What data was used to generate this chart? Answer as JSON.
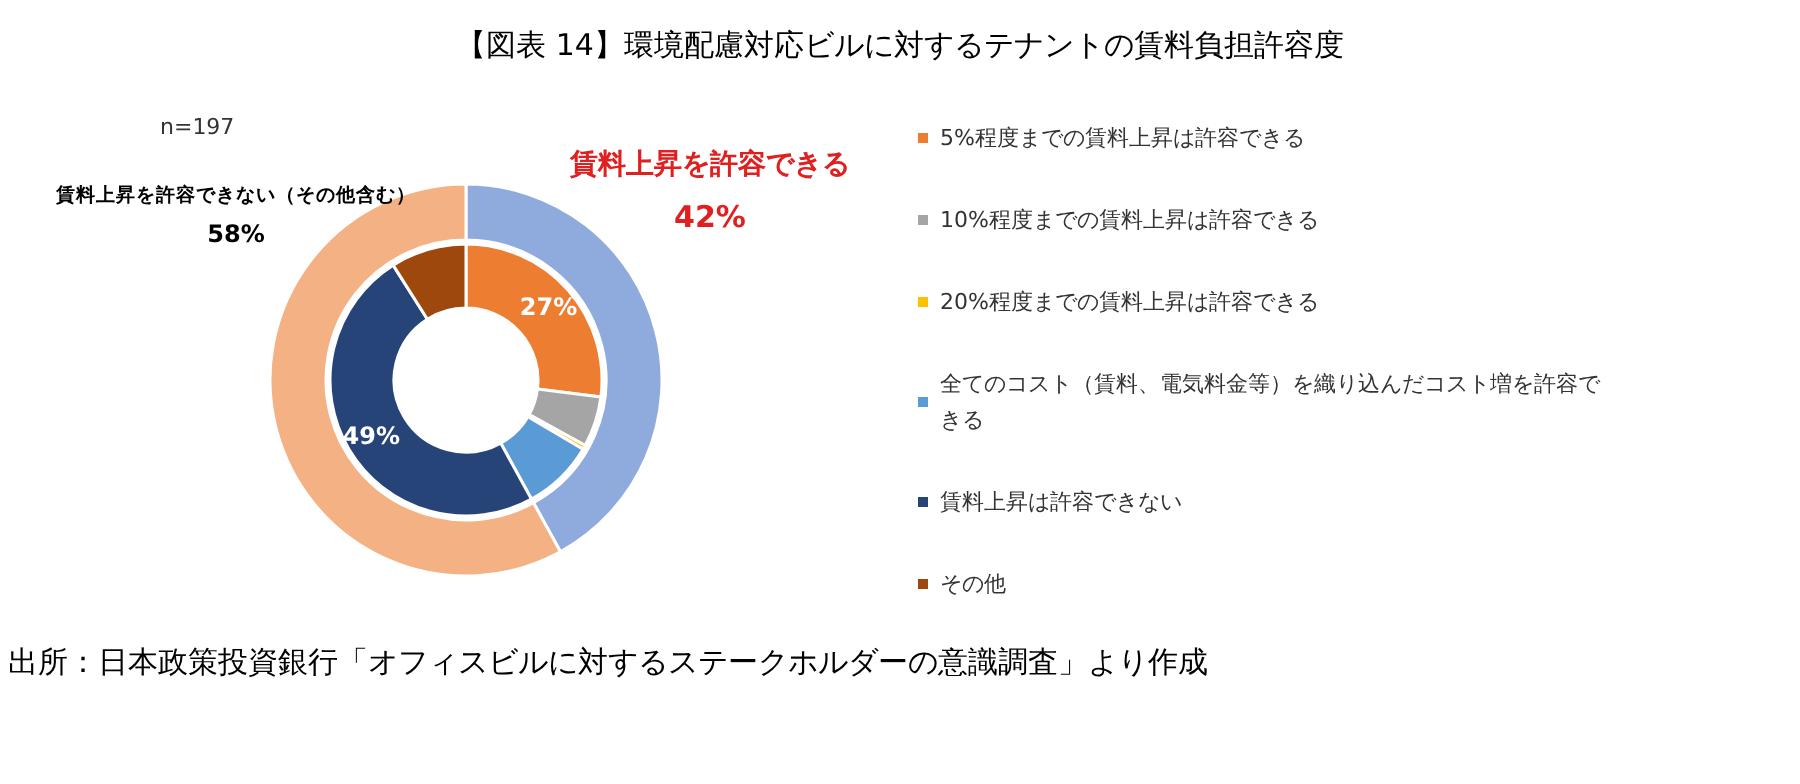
{
  "chart_data": [
    {
      "type": "donut",
      "title": "【図表 14】環境配慮対応ビルに対するテナントの賃料負担許容度",
      "categories": [
        "5%程度までの賃料上昇は許容できる",
        "10%程度までの賃料上昇は許容できる",
        "20%程度までの賃料上昇は許容できる",
        "全てのコスト（賃料、電気料金等）を織り込んだコスト増を許容できる",
        "賃料上昇は許容できない",
        "その他"
      ],
      "values": [
        27,
        6,
        0.5,
        8.5,
        49,
        9
      ],
      "colors": [
        "#ed7d31",
        "#a5a5a5",
        "#ffc000",
        "#5b9bd5",
        "#264478",
        "#9e480e"
      ],
      "value_labels": [
        "27%",
        null,
        null,
        null,
        "49%",
        null
      ],
      "legend": "right",
      "annotations": [
        "n=197",
        "出所：日本政策投資銀行「オフィスビルに対するステークホルダーの意識調査」より作成"
      ]
    },
    {
      "type": "donut",
      "categories": [
        "賃料上昇を許容できる",
        "賃料上昇を許容できない（その他含む）"
      ],
      "values": [
        42,
        58
      ],
      "colors": [
        "#8faadc",
        "#f4b183"
      ],
      "value_labels": [
        "42%",
        "58%"
      ]
    }
  ]
}
